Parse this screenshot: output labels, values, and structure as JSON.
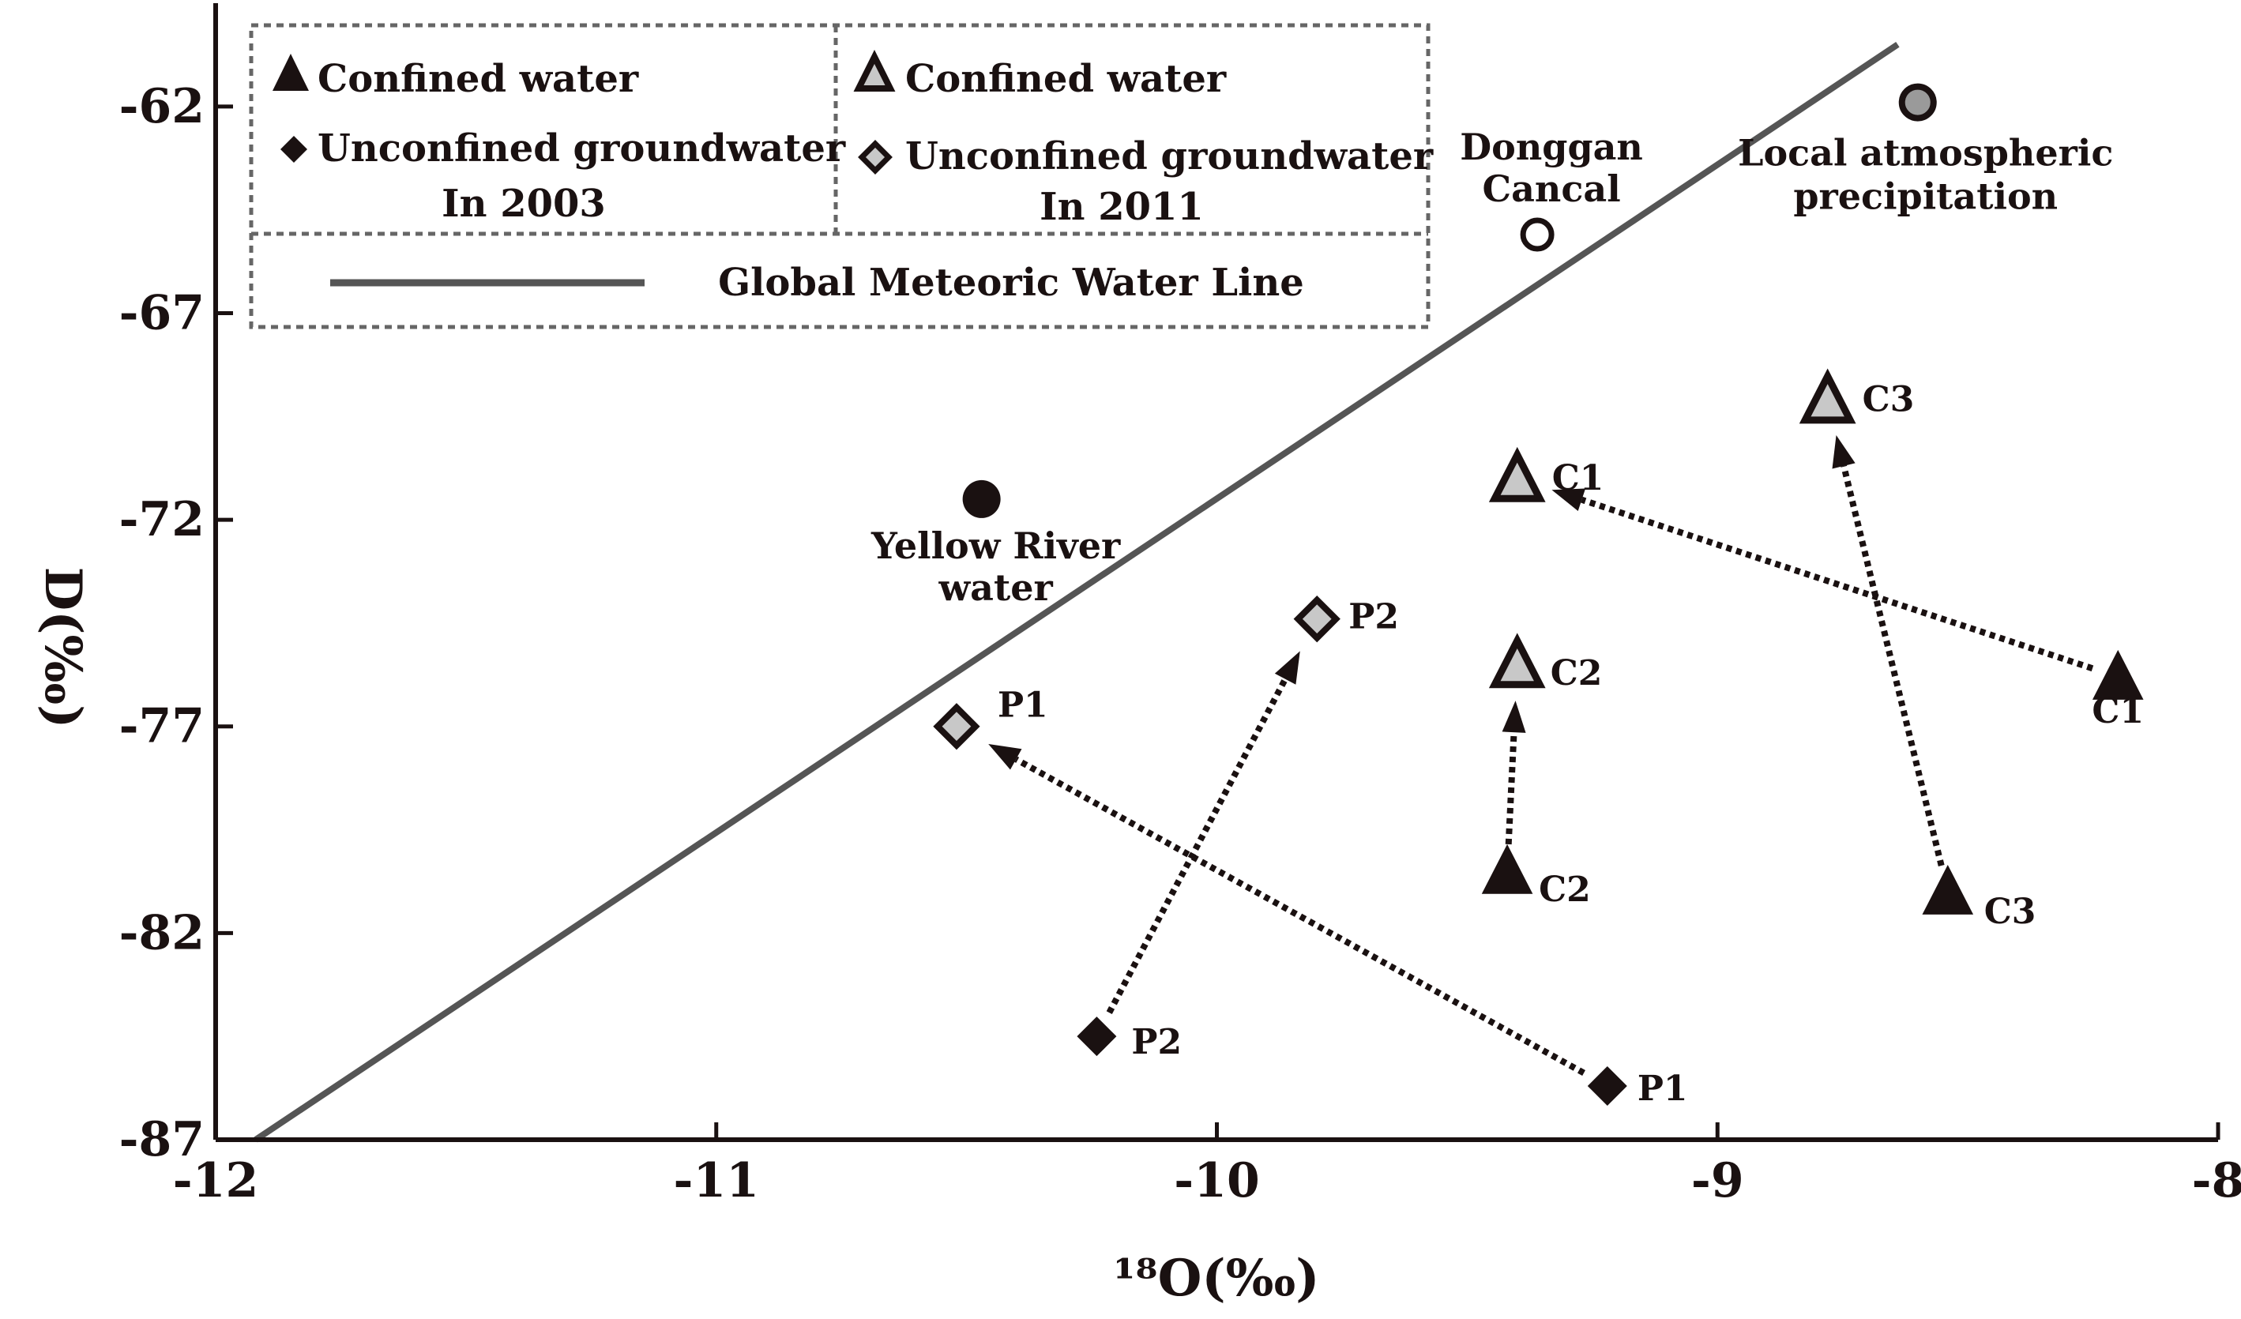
{
  "chart_data": {
    "type": "scatter",
    "title": "",
    "xlabel": "¹⁸O(‰)",
    "ylabel": "D(‰)",
    "xlim": [
      -12,
      -8
    ],
    "ylim": [
      -87,
      -59.5
    ],
    "xticks": [
      -12,
      -11,
      -10,
      -9,
      -8
    ],
    "yticks": [
      -87,
      -82,
      -77,
      -72,
      -67,
      -62
    ],
    "xtick_labels": [
      "-12",
      "-11",
      "-10",
      "-9",
      "-8"
    ],
    "ytick_labels": [
      "-87",
      "-82",
      "-77",
      "-72",
      "-67",
      "-62"
    ],
    "gmwl": {
      "name": "Global Meteoric Water Line",
      "x": [
        -11.92,
        -8.64
      ],
      "y": [
        -87,
        -60.5
      ]
    },
    "points_2003": [
      {
        "series": "Confined water 2003",
        "marker": "triangle-filled",
        "label": "C1",
        "x": -8.2,
        "y": -75.8
      },
      {
        "series": "Confined water 2003",
        "marker": "triangle-filled",
        "label": "C2",
        "x": -9.42,
        "y": -80.5
      },
      {
        "series": "Confined water 2003",
        "marker": "triangle-filled",
        "label": "C3",
        "x": -8.54,
        "y": -81.0
      },
      {
        "series": "Unconfined groundwater 2003",
        "marker": "diamond-filled",
        "label": "P1",
        "x": -9.22,
        "y": -85.7
      },
      {
        "series": "Unconfined groundwater 2003",
        "marker": "diamond-filled",
        "label": "P2",
        "x": -10.24,
        "y": -84.5
      }
    ],
    "points_2011": [
      {
        "series": "Confined water 2011",
        "marker": "triangle-open",
        "label": "C1",
        "x": -9.4,
        "y": -71.0
      },
      {
        "series": "Confined water 2011",
        "marker": "triangle-open",
        "label": "C2",
        "x": -9.4,
        "y": -75.5
      },
      {
        "series": "Confined water 2011",
        "marker": "triangle-open",
        "label": "C3",
        "x": -8.78,
        "y": -69.1
      },
      {
        "series": "Unconfined groundwater 2011",
        "marker": "diamond-open",
        "label": "P1",
        "x": -10.52,
        "y": -77.0
      },
      {
        "series": "Unconfined groundwater 2011",
        "marker": "diamond-open",
        "label": "P2",
        "x": -9.8,
        "y": -74.4
      }
    ],
    "references": [
      {
        "name": "Yellow River water",
        "lines": [
          "Yellow River",
          "water"
        ],
        "marker": "circle-filled",
        "x": -10.47,
        "y": -71.5
      },
      {
        "name": "Donggan Cancal",
        "lines": [
          "Donggan",
          "Cancal"
        ],
        "marker": "circle-open",
        "x": -9.36,
        "y": -65.1
      },
      {
        "name": "Local atmospheric precipitation",
        "lines": [
          "Local atmospheric",
          "precipitation"
        ],
        "marker": "circle-gray",
        "x": -8.6,
        "y": -61.9
      }
    ],
    "arrows": [
      {
        "label": "C1",
        "from": [
          -8.2,
          -75.8
        ],
        "to": [
          -9.4,
          -71.0
        ]
      },
      {
        "label": "C2",
        "from": [
          -9.42,
          -80.5
        ],
        "to": [
          -9.4,
          -75.5
        ]
      },
      {
        "label": "C3",
        "from": [
          -8.54,
          -81.0
        ],
        "to": [
          -8.78,
          -69.1
        ]
      },
      {
        "label": "P1",
        "from": [
          -9.22,
          -85.7
        ],
        "to": [
          -10.52,
          -77.0
        ]
      },
      {
        "label": "P2",
        "from": [
          -10.24,
          -84.5
        ],
        "to": [
          -9.8,
          -74.4
        ]
      }
    ],
    "legend": {
      "position": "top-left",
      "group_2003": {
        "confined": "Confined water",
        "unconfined": "Unconfined groundwater",
        "year": "In 2003"
      },
      "group_2011": {
        "confined": "Confined water",
        "unconfined": "Unconfined groundwater",
        "year": "In 2011"
      },
      "line": "Global Meteoric Water Line"
    },
    "colors": {
      "ink": "#1a1111",
      "line": "#555555",
      "gray_fill": "#c8c8c8",
      "legend_border": "#666666"
    }
  }
}
